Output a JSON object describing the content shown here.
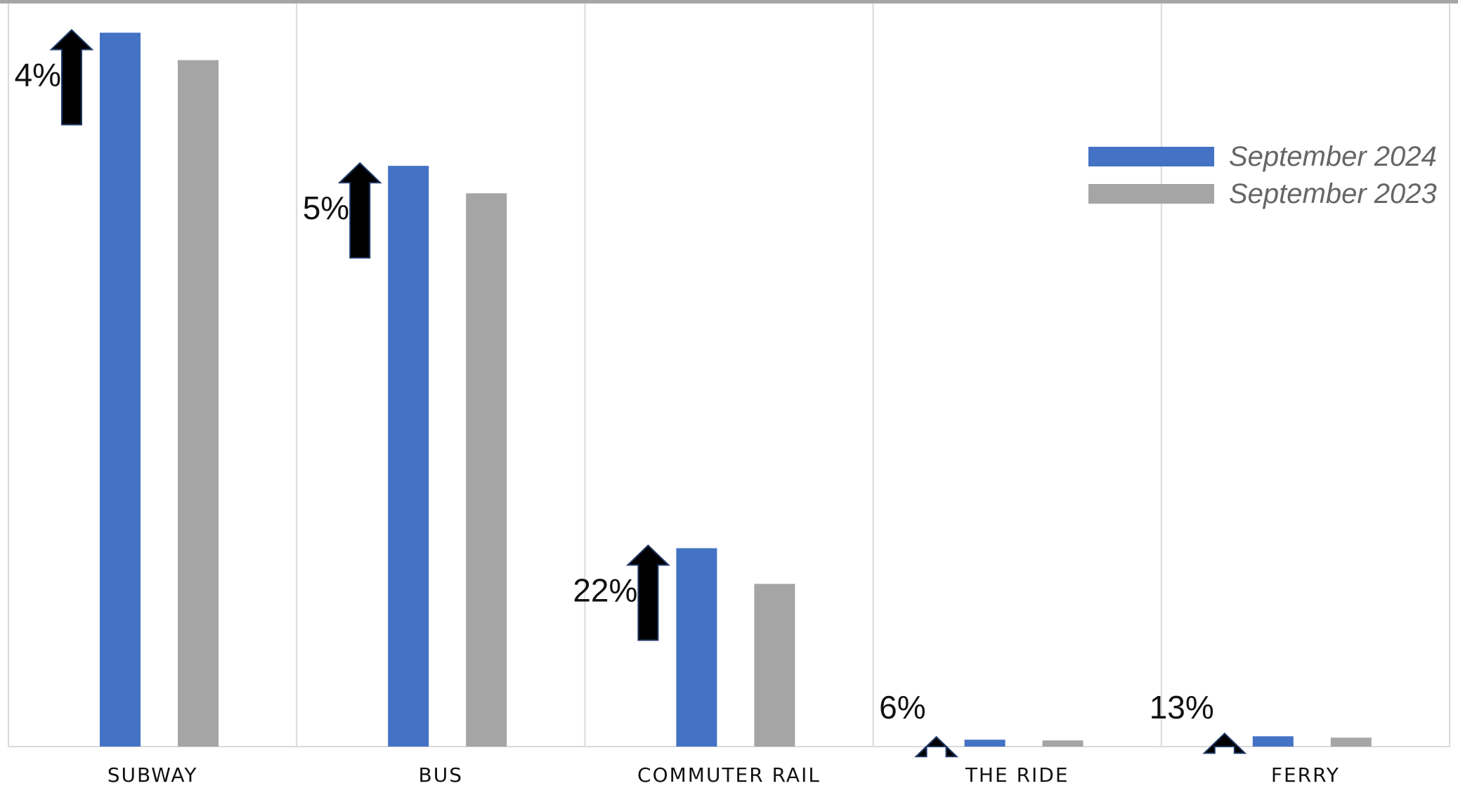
{
  "chart_data": {
    "type": "bar",
    "categories": [
      "SUBWAY",
      "BUS",
      "COMMUTER RAIL",
      "THE RIDE",
      "FERRY"
    ],
    "series": [
      {
        "name": "September 2024",
        "color": "#4472C4",
        "values": [
          1040,
          846,
          289,
          10,
          15
        ]
      },
      {
        "name": "September 2023",
        "color": "#A5A5A5",
        "values": [
          1000,
          806,
          237,
          9,
          13
        ]
      }
    ],
    "changes": [
      "4%",
      "5%",
      "22%",
      "6%",
      "13%"
    ],
    "change_direction": "up",
    "ylim": [
      0,
      1060
    ],
    "legend_position": "top-right",
    "grid": "vertical separators between categories"
  }
}
